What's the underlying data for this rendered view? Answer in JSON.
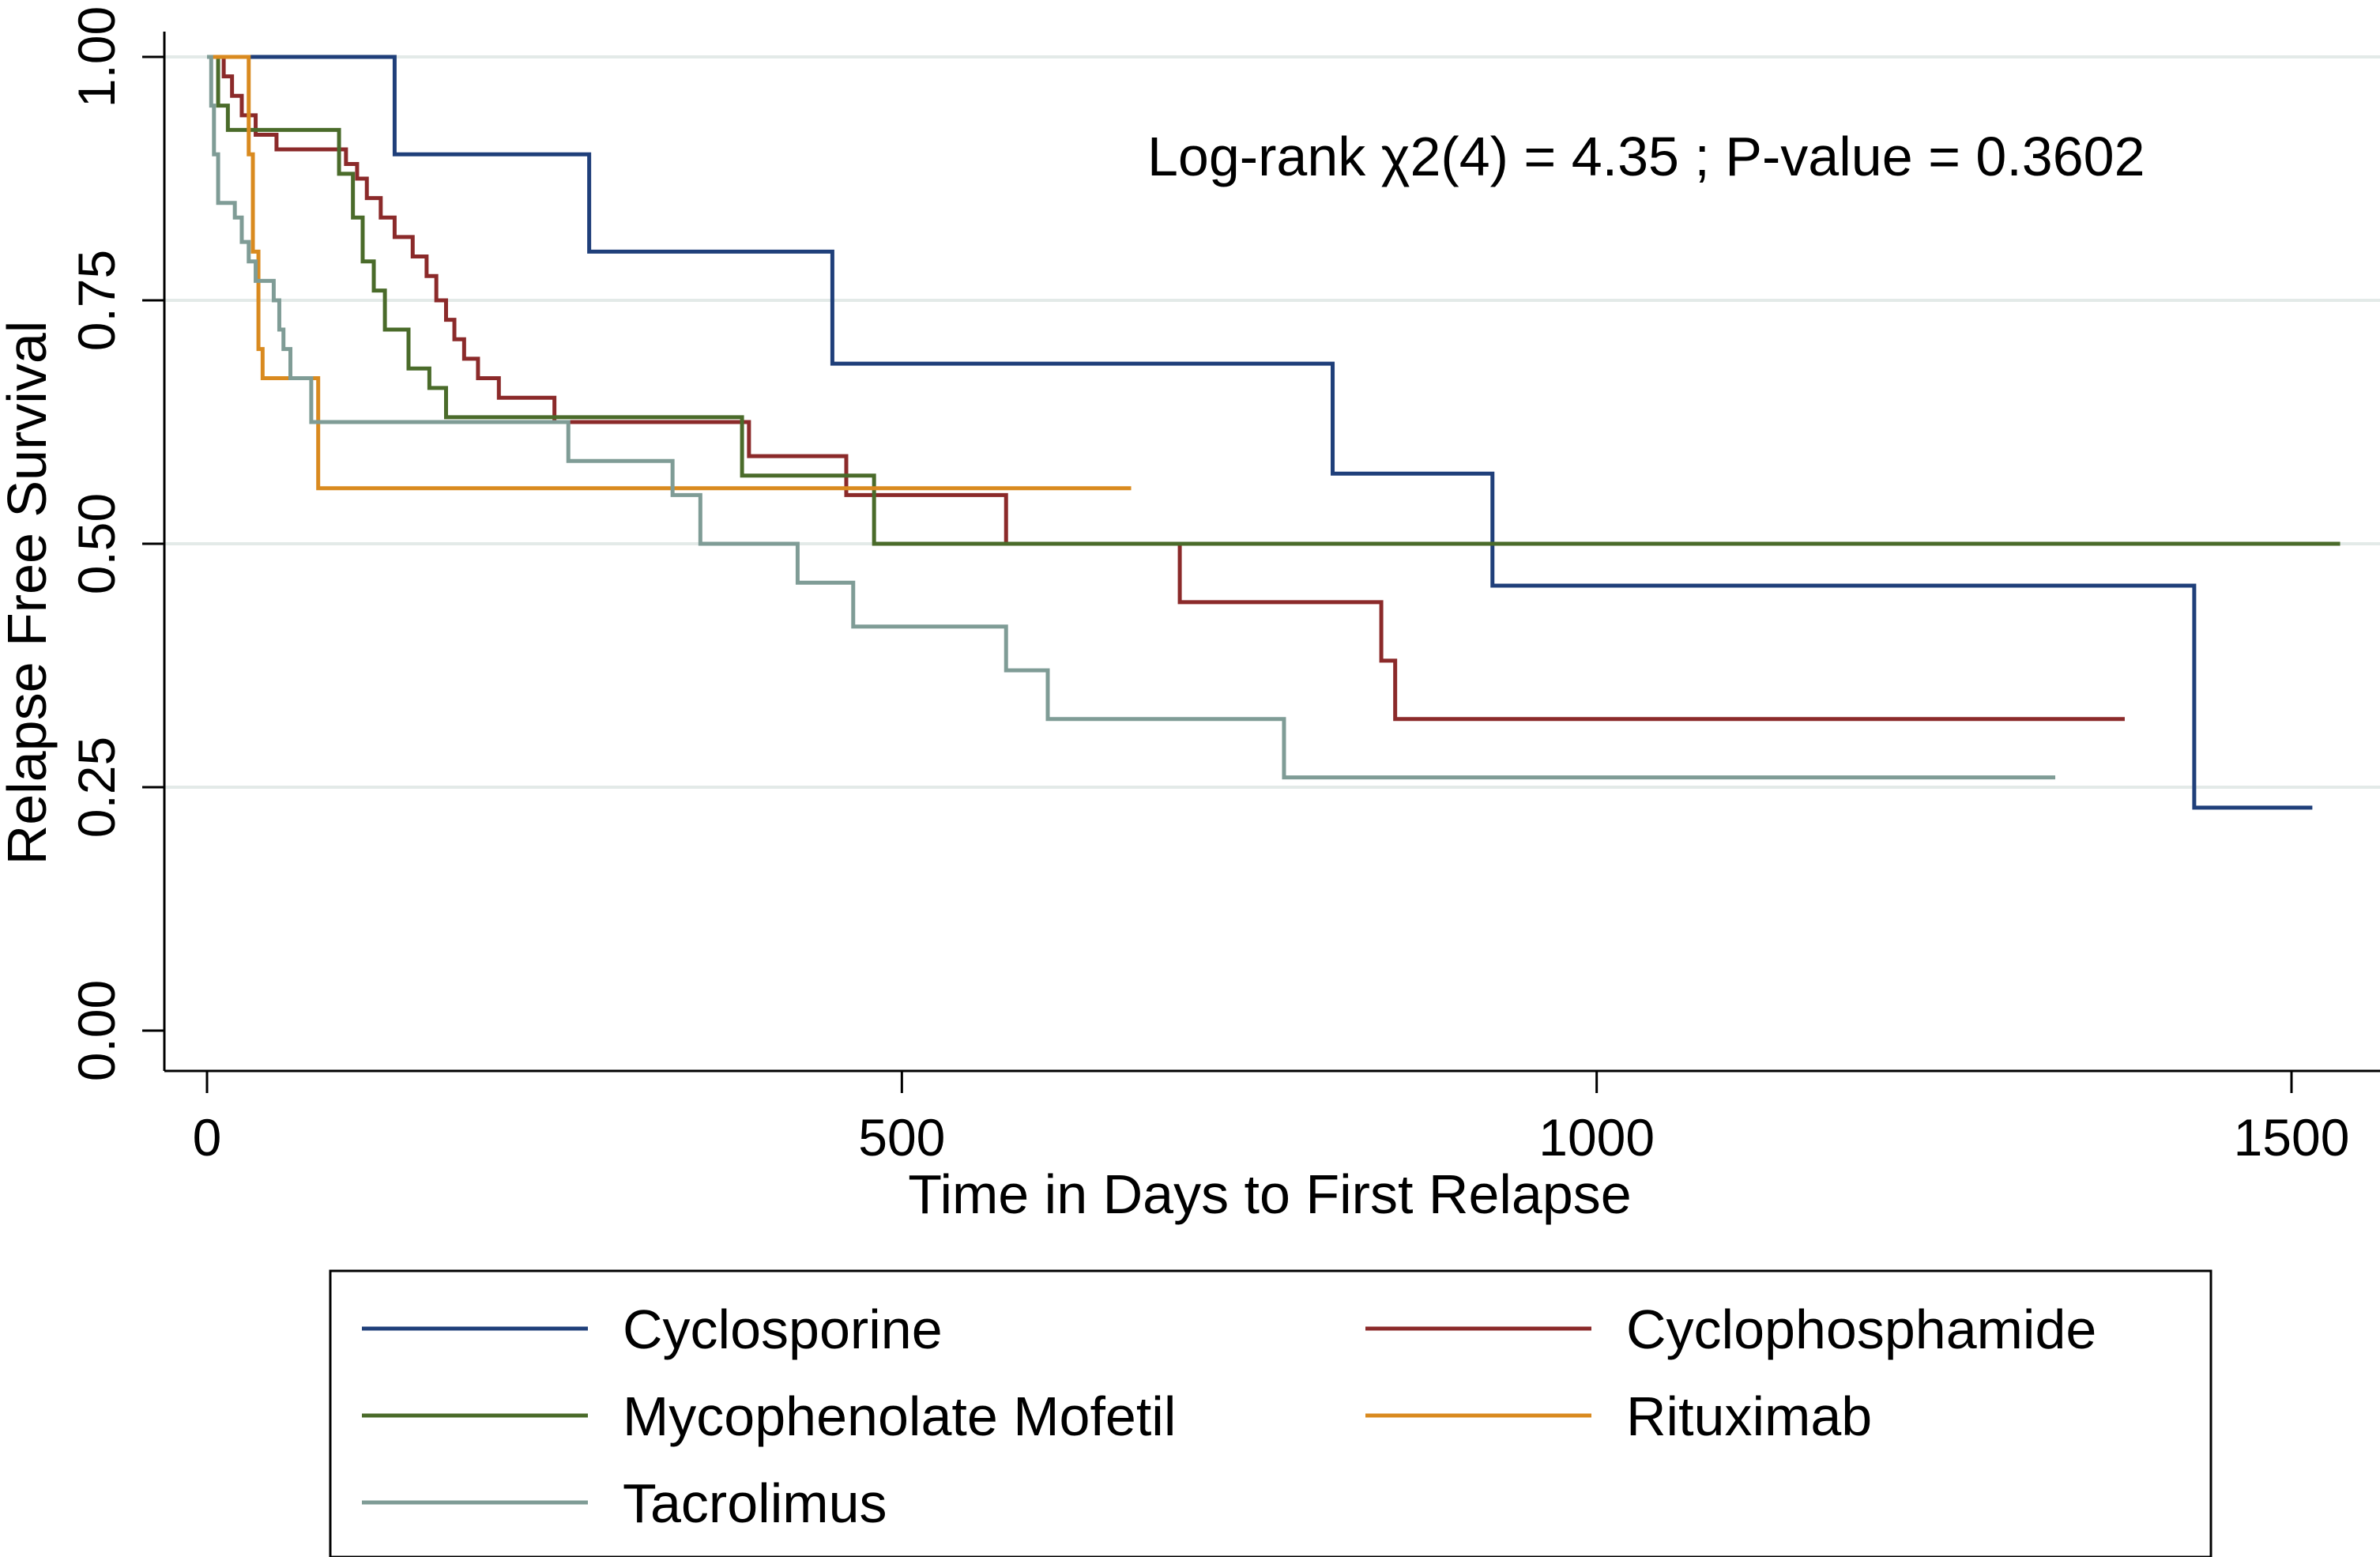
{
  "chart_data": {
    "type": "line",
    "step": true,
    "title": "",
    "xlabel": "Time in Days to First Relapse",
    "ylabel": "Relapse Free Survival",
    "xlim": [
      0,
      1530
    ],
    "ylim": [
      0,
      1
    ],
    "x_ticks": [
      0,
      500,
      1000,
      1500
    ],
    "x_tick_labels": [
      "0",
      "500",
      "1000",
      "1500"
    ],
    "y_ticks": [
      0,
      0.25,
      0.5,
      0.75,
      1
    ],
    "y_tick_labels": [
      "0.00",
      "0.25",
      "0.50",
      "0.75",
      "1.00"
    ],
    "grid": "horizontal",
    "annotation": "Log-rank χ2(4) = 4.35 ; P-value = 0.3602",
    "legend_position": "bottom",
    "series": [
      {
        "name": "Cyclosporine",
        "color": "#1f3f7a",
        "points": [
          [
            0,
            1
          ],
          [
            135,
            0.9
          ],
          [
            275,
            0.8
          ],
          [
            450,
            0.685
          ],
          [
            810,
            0.572
          ],
          [
            925,
            0.457
          ],
          [
            1430,
            0.229
          ],
          [
            1515,
            0.229
          ]
        ]
      },
      {
        "name": "Cyclophosphamide",
        "color": "#8b2a2a",
        "points": [
          [
            0,
            1
          ],
          [
            12,
            0.98
          ],
          [
            18,
            0.96
          ],
          [
            25,
            0.94
          ],
          [
            35,
            0.92
          ],
          [
            50,
            0.905
          ],
          [
            100,
            0.89
          ],
          [
            108,
            0.875
          ],
          [
            115,
            0.855
          ],
          [
            125,
            0.835
          ],
          [
            135,
            0.815
          ],
          [
            148,
            0.795
          ],
          [
            158,
            0.775
          ],
          [
            165,
            0.75
          ],
          [
            172,
            0.73
          ],
          [
            178,
            0.71
          ],
          [
            185,
            0.69
          ],
          [
            195,
            0.67
          ],
          [
            210,
            0.65
          ],
          [
            250,
            0.625
          ],
          [
            390,
            0.59
          ],
          [
            460,
            0.55
          ],
          [
            575,
            0.5
          ],
          [
            700,
            0.44
          ],
          [
            845,
            0.38
          ],
          [
            855,
            0.32
          ],
          [
            1380,
            0.32
          ]
        ]
      },
      {
        "name": "Mycophenolate Mofetil",
        "color": "#4a6b2a",
        "points": [
          [
            0,
            1
          ],
          [
            8,
            0.95
          ],
          [
            15,
            0.925
          ],
          [
            95,
            0.88
          ],
          [
            105,
            0.835
          ],
          [
            112,
            0.79
          ],
          [
            120,
            0.76
          ],
          [
            128,
            0.72
          ],
          [
            145,
            0.68
          ],
          [
            160,
            0.66
          ],
          [
            172,
            0.63
          ],
          [
            385,
            0.57
          ],
          [
            480,
            0.5
          ],
          [
            1535,
            0.5
          ]
        ]
      },
      {
        "name": "Rituximab",
        "color": "#d98a1f",
        "points": [
          [
            0,
            1
          ],
          [
            30,
            0.9
          ],
          [
            33,
            0.8
          ],
          [
            37,
            0.7
          ],
          [
            40,
            0.67
          ],
          [
            80,
            0.557
          ],
          [
            665,
            0.557
          ]
        ]
      },
      {
        "name": "Tacrolimus",
        "color": "#7f9c96",
        "points": [
          [
            0,
            1
          ],
          [
            3,
            0.95
          ],
          [
            5,
            0.9
          ],
          [
            8,
            0.85
          ],
          [
            20,
            0.835
          ],
          [
            25,
            0.81
          ],
          [
            30,
            0.79
          ],
          [
            35,
            0.77
          ],
          [
            48,
            0.75
          ],
          [
            52,
            0.72
          ],
          [
            55,
            0.7
          ],
          [
            60,
            0.67
          ],
          [
            75,
            0.625
          ],
          [
            260,
            0.585
          ],
          [
            335,
            0.55
          ],
          [
            355,
            0.5
          ],
          [
            425,
            0.46
          ],
          [
            465,
            0.415
          ],
          [
            575,
            0.37
          ],
          [
            605,
            0.32
          ],
          [
            775,
            0.26
          ],
          [
            1330,
            0.26
          ]
        ]
      }
    ]
  }
}
